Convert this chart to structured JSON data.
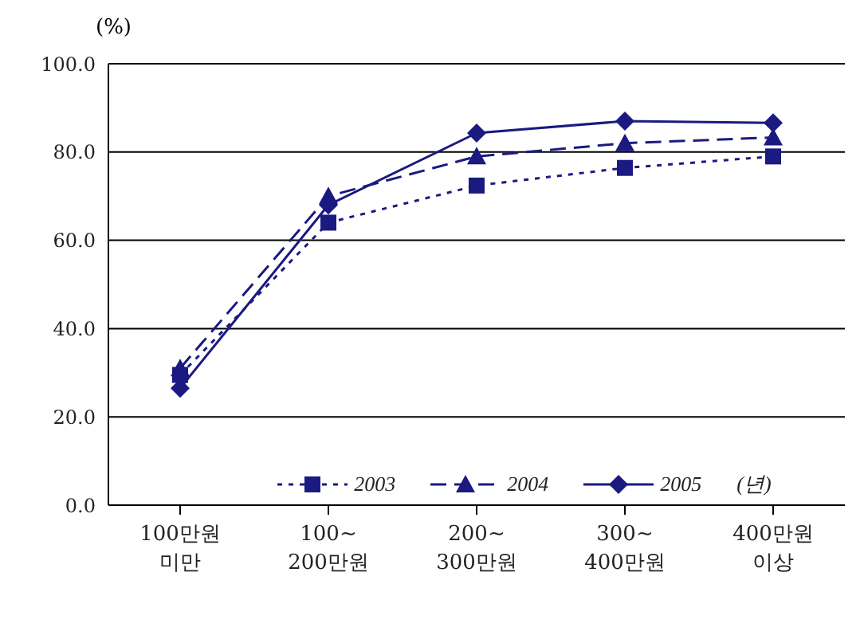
{
  "chart_data": {
    "type": "line",
    "ylabel": "(%)",
    "legend_title": "(년)",
    "categories": [
      "100만원\n미만",
      "100~\n200만원",
      "200~\n300만원",
      "300~\n400만원",
      "400만원\n이상"
    ],
    "series": [
      {
        "name": "2003",
        "color": "#1a1a80",
        "values": [
          29.5,
          64,
          72.4,
          76.4,
          79
        ],
        "marker": "square",
        "line_style": "dotted"
      },
      {
        "name": "2004",
        "color": "#1a1a80",
        "values": [
          31,
          70,
          79,
          82,
          83.3
        ],
        "marker": "triangle",
        "line_style": "dashed"
      },
      {
        "name": "2005",
        "color": "#1a1a80",
        "values": [
          26.5,
          68,
          84.3,
          87,
          86.6
        ],
        "marker": "diamond",
        "line_style": "solid"
      }
    ],
    "ylim": [
      0,
      100
    ],
    "yticks": [
      {
        "value": 0,
        "label": "0.0"
      },
      {
        "value": 20,
        "label": "20.0"
      },
      {
        "value": 40,
        "label": "40.0"
      },
      {
        "value": 60,
        "label": "60.0"
      },
      {
        "value": 80,
        "label": "80.0"
      },
      {
        "value": 100,
        "label": "100.0"
      }
    ],
    "grid": "y",
    "legend": "bottom"
  }
}
